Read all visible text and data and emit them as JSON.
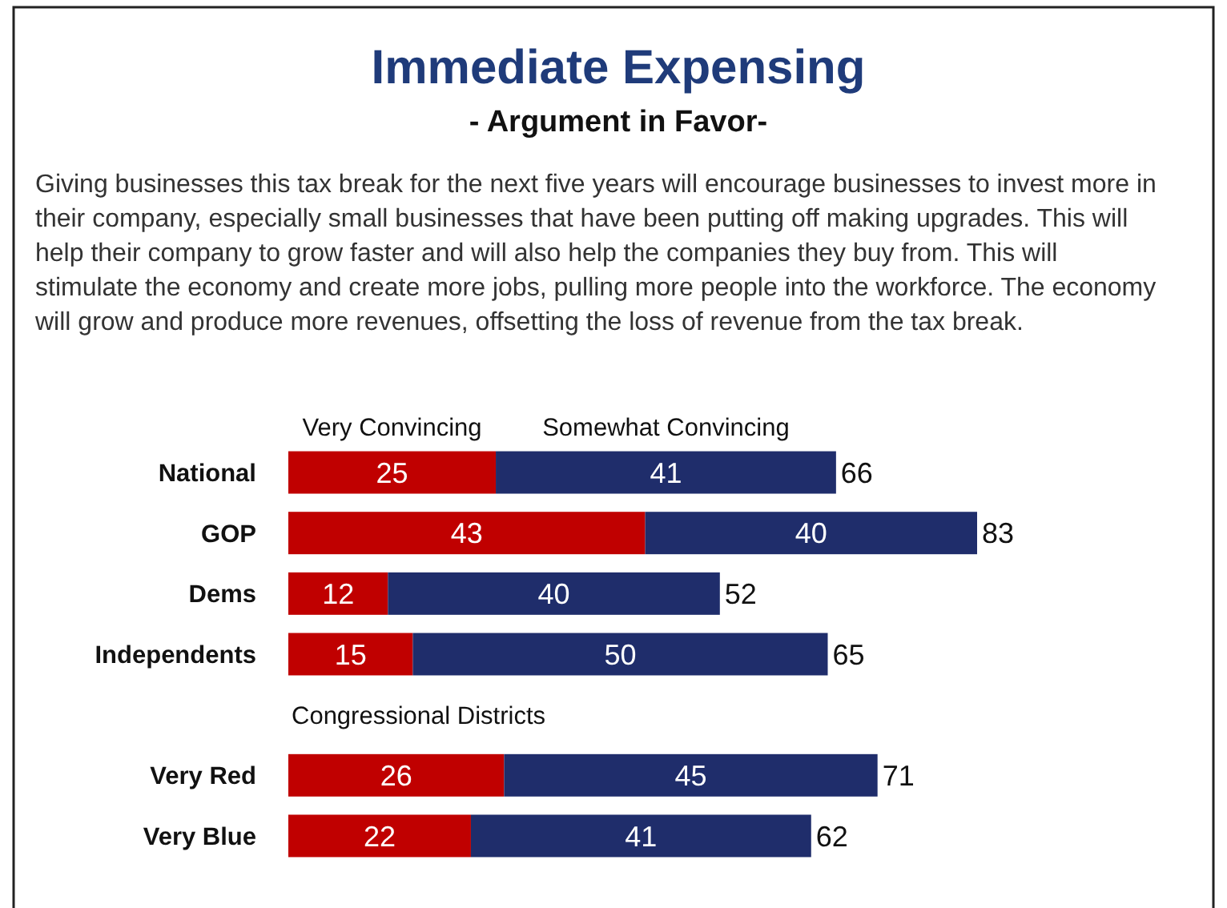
{
  "chart_data": {
    "type": "bar",
    "orientation": "horizontal",
    "stacked": true,
    "title": "Immediate Expensing",
    "subtitle": "- Argument in Favor-",
    "annotations": [
      "Giving businesses this tax break for the next five years will encourage businesses to invest more in their company, especially small businesses that have been putting off making upgrades. This will help their company to grow faster and will also help the companies they buy from. This will stimulate the economy and create more jobs, pulling more people into the workforce. The economy will grow and produce more revenues, offsetting the loss of revenue from the tax break.",
      "Congressional Districts"
    ],
    "categories": [
      "National",
      "GOP",
      "Dems",
      "Independents",
      null,
      "Very Red",
      "Very Blue"
    ],
    "series": [
      {
        "name": "Very Convincing",
        "color": "#c00000",
        "values": [
          25,
          43,
          12,
          15,
          null,
          26,
          22
        ]
      },
      {
        "name": "Somewhat Convincing",
        "color": "#1f2d6b",
        "values": [
          41,
          40,
          40,
          50,
          null,
          45,
          41
        ]
      }
    ],
    "totals": [
      "66",
      "83",
      "52",
      "65",
      null,
      "71",
      "62"
    ],
    "data_labels": true,
    "legend": "top"
  }
}
